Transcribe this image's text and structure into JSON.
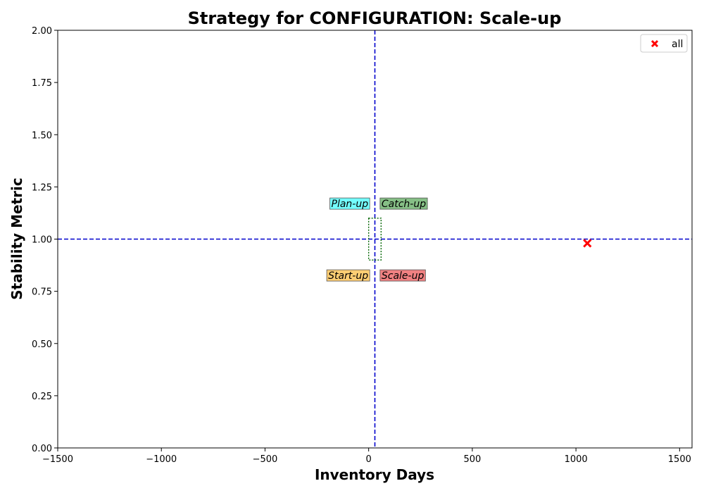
{
  "chart_data": {
    "type": "scatter",
    "title": "Strategy for CONFIGURATION: Scale-up",
    "xlabel": "Inventory Days",
    "ylabel": "Stability Metric",
    "xlim": [
      -1500,
      1560
    ],
    "ylim": [
      0,
      2.0
    ],
    "xticks": [
      -1500,
      -1000,
      -500,
      0,
      500,
      1000,
      1500
    ],
    "xtick_labels": [
      "−1500",
      "−1000",
      "−500",
      "0",
      "500",
      "1000",
      "1500"
    ],
    "yticks": [
      0,
      0.25,
      0.5,
      0.75,
      1.0,
      1.25,
      1.5,
      1.75,
      2.0
    ],
    "ytick_labels": [
      "0.00",
      "0.25",
      "0.50",
      "0.75",
      "1.00",
      "1.25",
      "1.50",
      "1.75",
      "2.00"
    ],
    "grid": false,
    "legend": {
      "placement": "top-right",
      "entries": [
        "all"
      ]
    },
    "series": [
      {
        "name": "all",
        "marker": "x",
        "color": "#ff0000",
        "points": [
          {
            "x": 1055,
            "y": 0.98
          }
        ]
      }
    ],
    "reference_lines": {
      "vertical_x": 30,
      "horizontal_y": 1.0,
      "color": "#0000cc"
    },
    "target_box": {
      "x": [
        0,
        60
      ],
      "y": [
        0.9,
        1.1
      ],
      "color": "#006400"
    },
    "quadrant_labels": [
      {
        "text": "Plan-up",
        "x": 5,
        "y": 1.17,
        "align": "right",
        "color": "#00ffff"
      },
      {
        "text": "Catch-up",
        "x": 55,
        "y": 1.17,
        "align": "left",
        "color": "#228b22"
      },
      {
        "text": "Start-up",
        "x": 5,
        "y": 0.826,
        "align": "right",
        "color": "#ffa500"
      },
      {
        "text": "Scale-up",
        "x": 55,
        "y": 0.826,
        "align": "left",
        "color": "#e41a1c"
      }
    ]
  }
}
